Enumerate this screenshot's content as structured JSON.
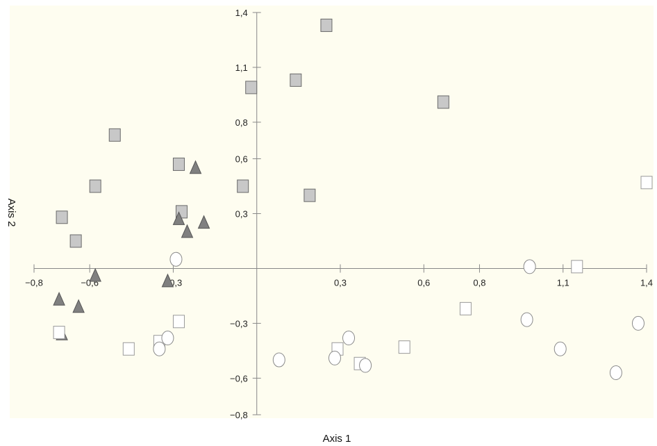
{
  "chart_data": {
    "type": "scatter",
    "title": "",
    "xlabel": "Axis 1",
    "ylabel": "Axis 2",
    "xlim": [
      -0.8,
      1.4
    ],
    "ylim": [
      -0.8,
      1.4
    ],
    "x_ticks": [
      -0.8,
      -0.6,
      -0.3,
      0.3,
      0.6,
      0.8,
      1.1,
      1.4
    ],
    "x_tick_labels": [
      "−0,8",
      "−0,6",
      "−0,3",
      "0,3",
      "0,6",
      "0,8",
      "1,1",
      "1,4"
    ],
    "y_ticks": [
      -0.8,
      -0.6,
      -0.3,
      0.3,
      0.6,
      0.8,
      1.1,
      1.4
    ],
    "y_tick_labels": [
      "−0,8",
      "−0,6",
      "−0,3",
      "0,3",
      "0,6",
      "0,8",
      "1,1",
      "1,4"
    ],
    "grid": false,
    "background_color": "#fefdf0",
    "series": [
      {
        "marker": "square-filled",
        "color": "#c8c8c8",
        "points": [
          [
            0.25,
            1.33
          ],
          [
            -0.02,
            0.99
          ],
          [
            0.14,
            1.03
          ],
          [
            0.67,
            0.91
          ],
          [
            -0.51,
            0.73
          ],
          [
            -0.28,
            0.57
          ],
          [
            -0.58,
            0.45
          ],
          [
            -0.05,
            0.45
          ],
          [
            0.19,
            0.4
          ],
          [
            -0.27,
            0.31
          ],
          [
            -0.7,
            0.28
          ],
          [
            -0.65,
            0.15
          ]
        ]
      },
      {
        "marker": "triangle-filled",
        "color": "#808080",
        "points": [
          [
            -0.22,
            0.55
          ],
          [
            -0.28,
            0.27
          ],
          [
            -0.19,
            0.25
          ],
          [
            -0.25,
            0.2
          ],
          [
            -0.58,
            -0.04
          ],
          [
            -0.32,
            -0.07
          ],
          [
            -0.71,
            -0.17
          ],
          [
            -0.64,
            -0.21
          ],
          [
            -0.7,
            -0.36
          ]
        ]
      },
      {
        "marker": "square-open",
        "color": "#ffffff",
        "points": [
          [
            1.4,
            0.47
          ],
          [
            1.15,
            0.01
          ],
          [
            0.75,
            -0.22
          ],
          [
            -0.28,
            -0.29
          ],
          [
            -0.71,
            -0.35
          ],
          [
            -0.35,
            -0.4
          ],
          [
            -0.46,
            -0.44
          ],
          [
            0.29,
            -0.44
          ],
          [
            0.53,
            -0.43
          ],
          [
            0.37,
            -0.52
          ]
        ]
      },
      {
        "marker": "circle-open",
        "color": "#ffffff",
        "points": [
          [
            -0.29,
            0.05
          ],
          [
            0.98,
            0.01
          ],
          [
            0.97,
            -0.28
          ],
          [
            1.37,
            -0.3
          ],
          [
            -0.32,
            -0.38
          ],
          [
            0.33,
            -0.38
          ],
          [
            -0.35,
            -0.44
          ],
          [
            1.09,
            -0.44
          ],
          [
            0.08,
            -0.5
          ],
          [
            0.28,
            -0.49
          ],
          [
            0.39,
            -0.53
          ],
          [
            1.29,
            -0.57
          ]
        ]
      }
    ]
  }
}
